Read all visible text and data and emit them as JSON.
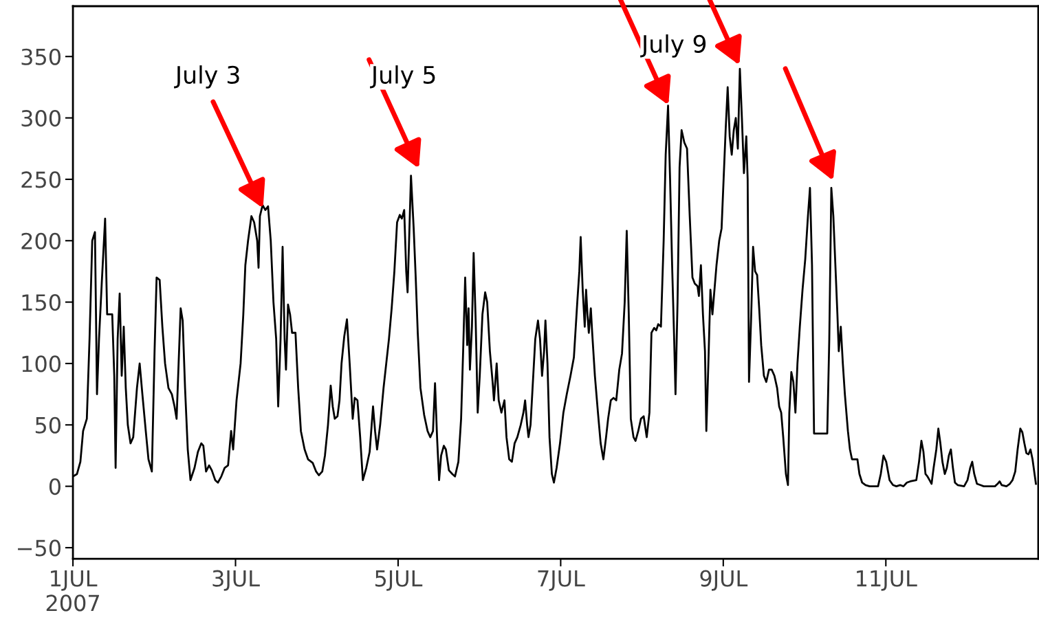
{
  "chart_data": {
    "type": "line",
    "x": [
      "2007-07-01T00:00",
      "2007-07-01T01:12",
      "2007-07-01T02:12",
      "2007-07-01T03:00",
      "2007-07-01T04:06",
      "2007-07-01T04:54",
      "2007-07-01T05:42",
      "2007-07-01T06:30",
      "2007-07-01T07:06",
      "2007-07-01T07:42",
      "2007-07-01T08:30",
      "2007-07-01T09:30",
      "2007-07-01T10:06",
      "2007-07-01T11:00",
      "2007-07-01T11:36",
      "2007-07-01T12:12",
      "2007-07-01T12:36",
      "2007-07-01T13:12",
      "2007-07-01T13:48",
      "2007-07-01T14:24",
      "2007-07-01T15:00",
      "2007-07-01T15:36",
      "2007-07-01T16:12",
      "2007-07-01T17:00",
      "2007-07-01T17:48",
      "2007-07-01T18:54",
      "2007-07-01T19:42",
      "2007-07-01T20:30",
      "2007-07-01T21:30",
      "2007-07-01T22:18",
      "2007-07-01T23:18",
      "2007-07-02T00:06",
      "2007-07-02T00:42",
      "2007-07-02T01:36",
      "2007-07-02T02:24",
      "2007-07-02T03:12",
      "2007-07-02T04:12",
      "2007-07-02T05:12",
      "2007-07-02T06:00",
      "2007-07-02T06:36",
      "2007-07-02T07:12",
      "2007-07-02T07:48",
      "2007-07-02T08:24",
      "2007-07-02T09:06",
      "2007-07-02T09:54",
      "2007-07-02T10:42",
      "2007-07-02T11:54",
      "2007-07-02T12:54",
      "2007-07-02T13:54",
      "2007-07-02T14:30",
      "2007-07-02T15:18",
      "2007-07-02T16:12",
      "2007-07-02T17:00",
      "2007-07-02T18:00",
      "2007-07-02T18:48",
      "2007-07-02T19:48",
      "2007-07-02T20:48",
      "2007-07-02T21:48",
      "2007-07-02T22:42",
      "2007-07-02T23:18",
      "2007-07-03T00:18",
      "2007-07-03T01:30",
      "2007-07-03T02:18",
      "2007-07-03T02:54",
      "2007-07-03T03:42",
      "2007-07-03T04:42",
      "2007-07-03T05:30",
      "2007-07-03T06:24",
      "2007-07-03T06:48",
      "2007-07-03T07:12",
      "2007-07-03T08:00",
      "2007-07-03T08:48",
      "2007-07-03T09:36",
      "2007-07-03T10:24",
      "2007-07-03T11:12",
      "2007-07-03T12:00",
      "2007-07-03T12:36",
      "2007-07-03T13:18",
      "2007-07-03T13:54",
      "2007-07-03T14:30",
      "2007-07-03T14:54",
      "2007-07-03T15:30",
      "2007-07-03T16:06",
      "2007-07-03T16:42",
      "2007-07-03T17:42",
      "2007-07-03T18:30",
      "2007-07-03T19:18",
      "2007-07-03T20:24",
      "2007-07-03T21:24",
      "2007-07-03T22:48",
      "2007-07-03T23:48",
      "2007-07-04T00:36",
      "2007-07-04T01:36",
      "2007-07-04T02:24",
      "2007-07-04T03:18",
      "2007-07-04T04:06",
      "2007-07-04T04:42",
      "2007-07-04T05:18",
      "2007-07-04T06:06",
      "2007-07-04T06:42",
      "2007-07-04T07:18",
      "2007-07-04T08:06",
      "2007-07-04T08:54",
      "2007-07-04T09:42",
      "2007-07-04T10:36",
      "2007-07-04T11:12",
      "2007-07-04T12:00",
      "2007-07-04T12:48",
      "2007-07-04T13:36",
      "2007-07-04T14:36",
      "2007-07-04T15:36",
      "2007-07-04T16:36",
      "2007-07-04T17:12",
      "2007-07-04T17:48",
      "2007-07-04T18:42",
      "2007-07-04T19:42",
      "2007-07-04T20:30",
      "2007-07-04T21:18",
      "2007-07-04T22:06",
      "2007-07-04T22:54",
      "2007-07-04T23:42",
      "2007-07-05T00:30",
      "2007-07-05T01:06",
      "2007-07-05T01:48",
      "2007-07-05T02:24",
      "2007-07-05T02:48",
      "2007-07-05T03:24",
      "2007-07-05T03:48",
      "2007-07-05T04:36",
      "2007-07-05T05:12",
      "2007-07-05T05:48",
      "2007-07-05T06:36",
      "2007-07-05T07:42",
      "2007-07-05T08:42",
      "2007-07-05T09:30",
      "2007-07-05T10:18",
      "2007-07-05T10:54",
      "2007-07-05T11:30",
      "2007-07-05T12:06",
      "2007-07-05T12:42",
      "2007-07-05T13:30",
      "2007-07-05T14:06",
      "2007-07-05T15:00",
      "2007-07-05T16:00",
      "2007-07-05T16:48",
      "2007-07-05T17:48",
      "2007-07-05T18:36",
      "2007-07-05T19:12",
      "2007-07-05T19:48",
      "2007-07-05T20:24",
      "2007-07-05T20:48",
      "2007-07-05T21:12",
      "2007-07-05T21:48",
      "2007-07-05T22:18",
      "2007-07-05T22:54",
      "2007-07-05T23:30",
      "2007-07-06T00:06",
      "2007-07-06T00:54",
      "2007-07-06T01:42",
      "2007-07-06T02:18",
      "2007-07-06T03:06",
      "2007-07-06T03:54",
      "2007-07-06T04:18",
      "2007-07-06T05:06",
      "2007-07-06T05:42",
      "2007-07-06T06:30",
      "2007-07-06T07:24",
      "2007-07-06T08:00",
      "2007-07-06T08:48",
      "2007-07-06T09:36",
      "2007-07-06T10:24",
      "2007-07-06T11:12",
      "2007-07-06T12:12",
      "2007-07-06T13:00",
      "2007-07-06T13:30",
      "2007-07-06T14:06",
      "2007-07-06T14:30",
      "2007-07-06T15:06",
      "2007-07-06T15:42",
      "2007-07-06T16:30",
      "2007-07-06T17:18",
      "2007-07-06T17:54",
      "2007-07-06T18:30",
      "2007-07-06T19:06",
      "2007-07-06T19:30",
      "2007-07-06T20:06",
      "2007-07-06T20:42",
      "2007-07-06T21:24",
      "2007-07-06T22:00",
      "2007-07-06T22:48",
      "2007-07-06T23:48",
      "2007-07-07T00:48",
      "2007-07-07T01:48",
      "2007-07-07T02:54",
      "2007-07-07T03:54",
      "2007-07-07T04:54",
      "2007-07-07T05:30",
      "2007-07-07T05:54",
      "2007-07-07T06:30",
      "2007-07-07T07:06",
      "2007-07-07T07:30",
      "2007-07-07T07:54",
      "2007-07-07T08:18",
      "2007-07-07T08:54",
      "2007-07-07T09:18",
      "2007-07-07T10:06",
      "2007-07-07T11:00",
      "2007-07-07T11:48",
      "2007-07-07T12:36",
      "2007-07-07T13:24",
      "2007-07-07T14:00",
      "2007-07-07T14:48",
      "2007-07-07T15:36",
      "2007-07-07T16:24",
      "2007-07-07T17:18",
      "2007-07-07T18:06",
      "2007-07-07T18:54",
      "2007-07-07T19:30",
      "2007-07-07T20:06",
      "2007-07-07T20:42",
      "2007-07-07T21:30",
      "2007-07-07T22:06",
      "2007-07-07T22:54",
      "2007-07-07T23:42",
      "2007-07-08T00:30",
      "2007-07-08T01:24",
      "2007-07-08T02:12",
      "2007-07-08T02:48",
      "2007-07-08T03:36",
      "2007-07-08T04:12",
      "2007-07-08T04:48",
      "2007-07-08T05:36",
      "2007-07-08T06:24",
      "2007-07-08T07:00",
      "2007-07-08T07:42",
      "2007-07-08T08:18",
      "2007-07-08T08:54",
      "2007-07-08T09:30",
      "2007-07-08T09:54",
      "2007-07-08T10:30",
      "2007-07-08T11:06",
      "2007-07-08T11:42",
      "2007-07-08T12:30",
      "2007-07-08T13:18",
      "2007-07-08T14:06",
      "2007-07-08T14:54",
      "2007-07-08T15:36",
      "2007-07-08T16:24",
      "2007-07-08T16:48",
      "2007-07-08T17:24",
      "2007-07-08T18:00",
      "2007-07-08T18:36",
      "2007-07-08T19:00",
      "2007-07-08T19:36",
      "2007-07-08T20:12",
      "2007-07-08T20:48",
      "2007-07-08T21:24",
      "2007-07-08T22:00",
      "2007-07-08T22:48",
      "2007-07-08T23:30",
      "2007-07-09T00:06",
      "2007-07-09T00:42",
      "2007-07-09T01:18",
      "2007-07-09T01:54",
      "2007-07-09T02:30",
      "2007-07-09T03:06",
      "2007-07-09T03:42",
      "2007-07-09T04:18",
      "2007-07-09T04:54",
      "2007-07-09T05:30",
      "2007-07-09T06:06",
      "2007-07-09T06:48",
      "2007-07-09T07:12",
      "2007-07-09T07:36",
      "2007-07-09T08:12",
      "2007-07-09T08:48",
      "2007-07-09T09:24",
      "2007-07-09T10:00",
      "2007-07-09T10:36",
      "2007-07-09T11:12",
      "2007-07-09T12:00",
      "2007-07-09T12:42",
      "2007-07-09T13:30",
      "2007-07-09T14:18",
      "2007-07-09T15:06",
      "2007-07-09T15:54",
      "2007-07-09T16:30",
      "2007-07-09T17:06",
      "2007-07-09T17:42",
      "2007-07-09T18:30",
      "2007-07-09T19:06",
      "2007-07-09T19:30",
      "2007-07-09T20:06",
      "2007-07-09T20:42",
      "2007-07-09T21:18",
      "2007-07-09T21:54",
      "2007-07-09T22:36",
      "2007-07-09T23:24",
      "2007-07-10T00:12",
      "2007-07-10T01:00",
      "2007-07-10T01:36",
      "2007-07-10T02:12",
      "2007-07-10T02:48",
      "2007-07-10T06:42",
      "2007-07-10T07:18",
      "2007-07-10T07:54",
      "2007-07-10T08:30",
      "2007-07-10T09:06",
      "2007-07-10T09:42",
      "2007-07-10T10:06",
      "2007-07-10T10:42",
      "2007-07-10T11:18",
      "2007-07-10T11:54",
      "2007-07-10T12:48",
      "2007-07-10T13:24",
      "2007-07-10T14:00",
      "2007-07-10T15:36",
      "2007-07-10T16:12",
      "2007-07-10T17:00",
      "2007-07-10T18:00",
      "2007-07-10T19:12",
      "2007-07-10T21:42",
      "2007-07-10T22:30",
      "2007-07-10T23:18",
      "2007-07-11T00:06",
      "2007-07-11T01:06",
      "2007-07-11T02:06",
      "2007-07-11T03:06",
      "2007-07-11T04:12",
      "2007-07-11T05:12",
      "2007-07-11T06:12",
      "2007-07-11T07:12",
      "2007-07-11T09:00",
      "2007-07-11T09:48",
      "2007-07-11T10:30",
      "2007-07-11T11:06",
      "2007-07-11T11:42",
      "2007-07-11T12:18",
      "2007-07-11T12:54",
      "2007-07-11T13:30",
      "2007-07-11T14:06",
      "2007-07-11T14:54",
      "2007-07-11T15:30",
      "2007-07-11T16:06",
      "2007-07-11T16:42",
      "2007-07-11T17:24",
      "2007-07-11T18:00",
      "2007-07-11T18:36",
      "2007-07-11T19:12",
      "2007-07-11T19:48",
      "2007-07-11T20:24",
      "2007-07-11T21:12",
      "2007-07-11T23:06",
      "2007-07-12T00:06",
      "2007-07-12T00:54",
      "2007-07-12T01:30",
      "2007-07-12T02:06",
      "2007-07-12T02:54",
      "2007-07-12T03:54",
      "2007-07-12T04:54",
      "2007-07-12T08:12",
      "2007-07-12T09:00",
      "2007-07-12T09:36",
      "2007-07-12T10:12",
      "2007-07-12T11:36",
      "2007-07-12T12:36",
      "2007-07-12T13:24",
      "2007-07-12T14:12",
      "2007-07-12T14:54",
      "2007-07-12T15:42",
      "2007-07-12T16:18",
      "2007-07-12T16:54",
      "2007-07-12T17:30",
      "2007-07-12T18:06",
      "2007-07-12T18:42",
      "2007-07-12T19:18",
      "2007-07-12T20:18"
    ],
    "series": [
      {
        "color": "#000000",
        "values": [
          8,
          10,
          20,
          45,
          55,
          120,
          200,
          207,
          75,
          120,
          165,
          218,
          140,
          140,
          140,
          90,
          15,
          120,
          157,
          90,
          130,
          80,
          50,
          35,
          40,
          80,
          100,
          75,
          45,
          22,
          12,
          110,
          170,
          168,
          130,
          100,
          80,
          75,
          65,
          55,
          100,
          145,
          135,
          80,
          30,
          5,
          15,
          28,
          35,
          33,
          12,
          17,
          13,
          5,
          3,
          8,
          15,
          17,
          45,
          30,
          70,
          100,
          140,
          180,
          200,
          220,
          215,
          200,
          178,
          220,
          229,
          225,
          228,
          200,
          150,
          120,
          65,
          120,
          195,
          120,
          95,
          148,
          140,
          125,
          125,
          80,
          45,
          30,
          22,
          19,
          12,
          9,
          12,
          25,
          50,
          82,
          65,
          55,
          57,
          70,
          100,
          122,
          136,
          100,
          55,
          72,
          70,
          40,
          5,
          15,
          28,
          65,
          45,
          30,
          50,
          80,
          100,
          120,
          145,
          175,
          215,
          221,
          218,
          225,
          175,
          158,
          215,
          253,
          210,
          170,
          125,
          80,
          58,
          45,
          40,
          45,
          84,
          40,
          5,
          25,
          33,
          30,
          13,
          10,
          8,
          20,
          55,
          110,
          170,
          115,
          145,
          95,
          130,
          190,
          135,
          60,
          90,
          140,
          158,
          150,
          110,
          85,
          70,
          100,
          70,
          60,
          70,
          40,
          22,
          20,
          35,
          40,
          50,
          60,
          70,
          50,
          40,
          50,
          80,
          120,
          135,
          120,
          90,
          110,
          135,
          100,
          40,
          10,
          3,
          15,
          35,
          60,
          75,
          90,
          105,
          150,
          175,
          203,
          160,
          130,
          160,
          140,
          125,
          145,
          125,
          90,
          60,
          35,
          22,
          40,
          55,
          70,
          72,
          70,
          95,
          108,
          150,
          208,
          140,
          55,
          40,
          37,
          45,
          55,
          57,
          40,
          60,
          125,
          129,
          127,
          132,
          130,
          200,
          270,
          310,
          250,
          180,
          120,
          75,
          150,
          260,
          290,
          280,
          275,
          220,
          170,
          165,
          163,
          155,
          180,
          140,
          110,
          45,
          100,
          160,
          140,
          160,
          180,
          200,
          210,
          250,
          290,
          325,
          285,
          270,
          290,
          300,
          275,
          340,
          300,
          255,
          285,
          250,
          85,
          135,
          195,
          175,
          172,
          145,
          115,
          90,
          85,
          95,
          95,
          90,
          80,
          65,
          60,
          40,
          10,
          1,
          60,
          93,
          85,
          60,
          100,
          130,
          160,
          185,
          220,
          243,
          180,
          43,
          43,
          120,
          243,
          220,
          180,
          140,
          110,
          130,
          100,
          75,
          45,
          30,
          22,
          22,
          10,
          3,
          1,
          0,
          0,
          10,
          25,
          20,
          5,
          1,
          0,
          1,
          0,
          3,
          4,
          5,
          20,
          37,
          28,
          10,
          8,
          5,
          2,
          15,
          30,
          47,
          35,
          20,
          10,
          15,
          25,
          30,
          15,
          3,
          1,
          0,
          5,
          15,
          20,
          10,
          2,
          1,
          0,
          0,
          2,
          4,
          1,
          0,
          2,
          5,
          12,
          30,
          47,
          44,
          35,
          27,
          26,
          30,
          22,
          2
        ]
      }
    ],
    "xlim": [
      "2007-07-01T00:00",
      "2007-07-12T21:00"
    ],
    "xticks": [
      {
        "value": "2007-07-01",
        "label": "1JUL\n2007"
      },
      {
        "value": "2007-07-03",
        "label": "3JUL"
      },
      {
        "value": "2007-07-05",
        "label": "5JUL"
      },
      {
        "value": "2007-07-07",
        "label": "7JUL"
      },
      {
        "value": "2007-07-09",
        "label": "9JUL"
      },
      {
        "value": "2007-07-11",
        "label": "11JUL"
      }
    ],
    "ylim": [
      -59,
      391
    ],
    "yticks": [
      {
        "value": -50,
        "label": "−50"
      },
      0,
      50,
      100,
      150,
      200,
      250,
      300,
      350
    ],
    "annotations": [
      "July 3",
      "July 5",
      "July 9"
    ]
  }
}
